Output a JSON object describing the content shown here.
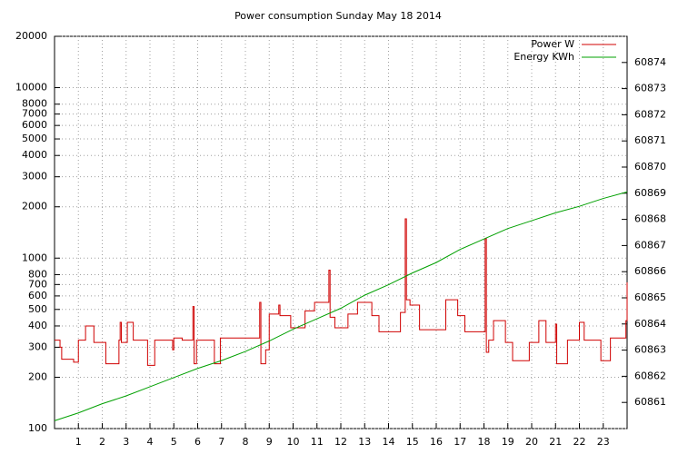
{
  "chart_data": {
    "type": "line",
    "title": "Power consumption Sunday May 18 2014",
    "step": true,
    "grid": true,
    "log_y": true,
    "legend": "top-right",
    "xlim": [
      0,
      24
    ],
    "xticks": [
      1,
      2,
      3,
      4,
      5,
      6,
      7,
      8,
      9,
      10,
      11,
      12,
      13,
      14,
      15,
      16,
      17,
      18,
      19,
      20,
      21,
      22,
      23
    ],
    "ylim": [
      100,
      20000
    ],
    "yticks": [
      100,
      200,
      300,
      400,
      500,
      600,
      700,
      800,
      1000,
      2000,
      3000,
      4000,
      5000,
      6000,
      7000,
      8000,
      10000,
      20000
    ],
    "y2lim": [
      60860,
      60875
    ],
    "y2ticks": [
      60861,
      60862,
      60863,
      60864,
      60865,
      60866,
      60867,
      60868,
      60869,
      60870,
      60871,
      60872,
      60873,
      60874
    ],
    "series": [
      {
        "name": "Power W",
        "color": "#d00000",
        "x": [
          0,
          0.23,
          0.3,
          0.8,
          1.0,
          1.3,
          1.65,
          2.15,
          2.7,
          2.75,
          2.8,
          3.05,
          3.3,
          3.9,
          4.2,
          4.95,
          5.0,
          5.35,
          5.8,
          5.85,
          5.95,
          6.7,
          6.95,
          8.5,
          8.6,
          8.65,
          8.85,
          9.0,
          9.4,
          9.45,
          9.9,
          10.5,
          10.9,
          11.5,
          11.55,
          11.75,
          12.3,
          12.7,
          13.3,
          13.6,
          14.5,
          14.7,
          14.75,
          14.9,
          15.3,
          16.4,
          16.9,
          17.2,
          18.05,
          18.1,
          18.2,
          18.4,
          18.9,
          19.2,
          19.9,
          20.3,
          20.6,
          21.0,
          21.05,
          21.5,
          22.0,
          22.2,
          22.9,
          23.3,
          23.95,
          24
        ],
        "values": [
          330,
          300,
          255,
          245,
          330,
          400,
          320,
          240,
          330,
          420,
          320,
          420,
          330,
          235,
          330,
          290,
          340,
          330,
          520,
          240,
          330,
          240,
          340,
          340,
          550,
          240,
          290,
          470,
          530,
          460,
          390,
          490,
          550,
          850,
          450,
          390,
          470,
          550,
          460,
          370,
          480,
          1700,
          570,
          530,
          380,
          570,
          460,
          370,
          1300,
          280,
          330,
          430,
          320,
          250,
          320,
          430,
          320,
          410,
          240,
          330,
          420,
          330,
          250,
          340,
          430,
          720
        ]
      },
      {
        "name": "Energy KWh",
        "color": "#00a000",
        "axis": "y2",
        "x": [
          0,
          1,
          2,
          3,
          4,
          5,
          6,
          7,
          8,
          9,
          10,
          11,
          12,
          13,
          14,
          15,
          16,
          17,
          18,
          19,
          20,
          21,
          22,
          23,
          24
        ],
        "values": [
          60860.3,
          60860.6,
          60860.95,
          60861.25,
          60861.6,
          60861.95,
          60862.3,
          60862.6,
          60862.95,
          60863.35,
          60863.8,
          60864.2,
          60864.6,
          60865.1,
          60865.5,
          60865.95,
          60866.35,
          60866.85,
          60867.25,
          60867.65,
          60867.95,
          60868.25,
          60868.5,
          60868.8,
          60869.05
        ]
      }
    ]
  }
}
